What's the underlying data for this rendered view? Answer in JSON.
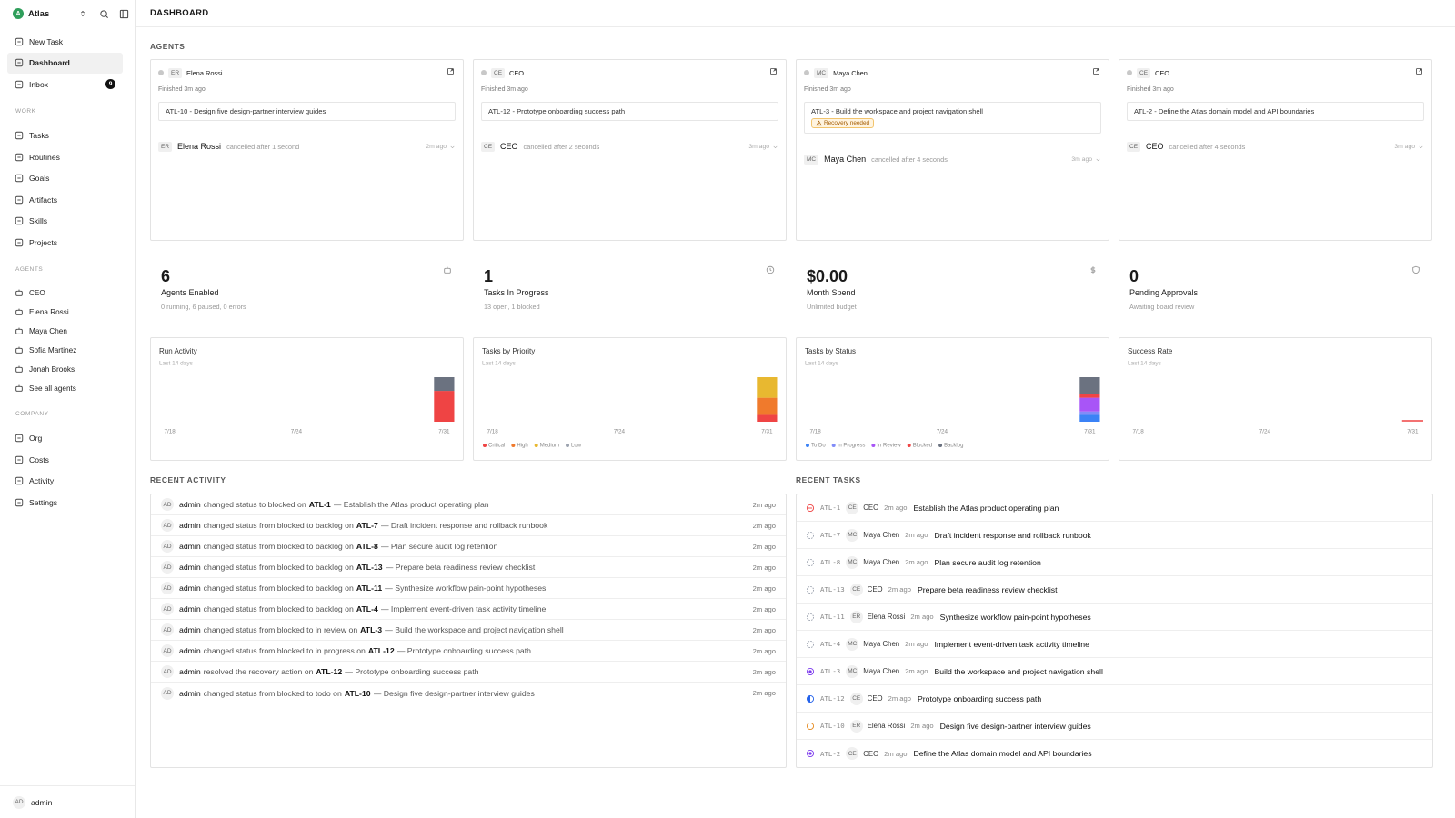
{
  "sidebar": {
    "workspace": {
      "initial": "A",
      "name": "Atlas"
    },
    "nav": [
      {
        "label": "New Task"
      },
      {
        "label": "Dashboard",
        "active": true
      },
      {
        "label": "Inbox",
        "badge": 9
      }
    ],
    "sections": [
      {
        "title": "WORK",
        "items": [
          "Tasks",
          "Routines",
          "Goals",
          "Artifacts",
          "Skills",
          "Projects"
        ]
      },
      {
        "title": "AGENTS",
        "items": [
          "CEO",
          "Elena Rossi",
          "Maya Chen",
          "Sofia Martinez",
          "Jonah Brooks",
          "See all agents"
        ]
      },
      {
        "title": "COMPANY",
        "items": [
          "Org",
          "Costs",
          "Activity",
          "Settings"
        ]
      }
    ],
    "user": {
      "initials": "AD",
      "name": "admin"
    }
  },
  "header": {
    "title": "DASHBOARD"
  },
  "agents": {
    "title": "AGENTS",
    "cards": [
      {
        "initials": "ER",
        "name": "Elena Rossi",
        "status": "Finished 3m ago",
        "task": "ATL-10 - Design five design-partner interview guides",
        "run": {
          "initials": "ER",
          "name": "Elena Rossi",
          "result": "cancelled after 1 second",
          "time": "2m ago"
        }
      },
      {
        "initials": "CE",
        "name": "CEO",
        "status": "Finished 3m ago",
        "task": "ATL-12 - Prototype onboarding success path",
        "run": {
          "initials": "CE",
          "name": "CEO",
          "result": "cancelled after 2 seconds",
          "time": "3m ago"
        }
      },
      {
        "initials": "MC",
        "name": "Maya Chen",
        "status": "Finished 3m ago",
        "task": "ATL-3 - Build the workspace and project navigation shell",
        "badge": "Recovery needed",
        "run": {
          "initials": "MC",
          "name": "Maya Chen",
          "result": "cancelled after 4 seconds",
          "time": "3m ago"
        }
      },
      {
        "initials": "CE",
        "name": "CEO",
        "status": "Finished 3m ago",
        "task": "ATL-2 - Define the Atlas domain model and API boundaries",
        "run": {
          "initials": "CE",
          "name": "CEO",
          "result": "cancelled after 4 seconds",
          "time": "3m ago"
        }
      }
    ]
  },
  "stats": [
    {
      "value": 6,
      "label": "Agents Enabled",
      "sub": "0 running, 6 paused, 0 errors"
    },
    {
      "value": 1,
      "label": "Tasks In Progress",
      "sub": "13 open, 1 blocked"
    },
    {
      "value": "$0.00",
      "label": "Month Spend",
      "sub": "Unlimited budget"
    },
    {
      "value": 0,
      "label": "Pending Approvals",
      "sub": "Awaiting board review"
    }
  ],
  "charts": [
    {
      "type": "bar",
      "title": "Run Activity",
      "subtitle": "Last 14 days",
      "categories": [
        "7/18",
        null,
        null,
        null,
        null,
        null,
        "7/24",
        null,
        null,
        null,
        null,
        null,
        null,
        "7/31"
      ],
      "series": [
        {
          "color": "#ef4444",
          "values": [
            0,
            0,
            0,
            0,
            0,
            0,
            0,
            0,
            0,
            0,
            0,
            0,
            0,
            9
          ]
        },
        {
          "color": "#6b7280",
          "values": [
            0,
            0,
            0,
            0,
            0,
            0,
            0,
            0,
            0,
            0,
            0,
            0,
            0,
            4
          ]
        }
      ]
    },
    {
      "type": "bar",
      "title": "Tasks by Priority",
      "subtitle": "Last 14 days",
      "categories": [
        "7/18",
        null,
        null,
        null,
        null,
        null,
        "7/24",
        null,
        null,
        null,
        null,
        null,
        null,
        "7/31"
      ],
      "series": [
        {
          "name": "Critical",
          "color": "#ef4444",
          "values": [
            0,
            0,
            0,
            0,
            0,
            0,
            0,
            0,
            0,
            0,
            0,
            0,
            0,
            2
          ]
        },
        {
          "name": "High",
          "color": "#f07a2c",
          "values": [
            0,
            0,
            0,
            0,
            0,
            0,
            0,
            0,
            0,
            0,
            0,
            0,
            0,
            5
          ]
        },
        {
          "name": "Medium",
          "color": "#e8b830",
          "values": [
            0,
            0,
            0,
            0,
            0,
            0,
            0,
            0,
            0,
            0,
            0,
            0,
            0,
            6
          ]
        },
        {
          "name": "Low",
          "color": "#9ca3af",
          "values": [
            0,
            0,
            0,
            0,
            0,
            0,
            0,
            0,
            0,
            0,
            0,
            0,
            0,
            0
          ]
        }
      ]
    },
    {
      "type": "bar",
      "title": "Tasks by Status",
      "subtitle": "Last 14 days",
      "categories": [
        "7/18",
        null,
        null,
        null,
        null,
        null,
        "7/24",
        null,
        null,
        null,
        null,
        null,
        null,
        "7/31"
      ],
      "series": [
        {
          "name": "To Do",
          "color": "#3b82f6",
          "values": [
            0,
            0,
            0,
            0,
            0,
            0,
            0,
            0,
            0,
            0,
            0,
            0,
            0,
            2
          ]
        },
        {
          "name": "In Progress",
          "color": "#818cf8",
          "values": [
            0,
            0,
            0,
            0,
            0,
            0,
            0,
            0,
            0,
            0,
            0,
            0,
            0,
            1
          ]
        },
        {
          "name": "In Review",
          "color": "#a855f7",
          "values": [
            0,
            0,
            0,
            0,
            0,
            0,
            0,
            0,
            0,
            0,
            0,
            0,
            0,
            4
          ]
        },
        {
          "name": "Blocked",
          "color": "#ef4444",
          "values": [
            0,
            0,
            0,
            0,
            0,
            0,
            0,
            0,
            0,
            0,
            0,
            0,
            0,
            1
          ]
        },
        {
          "name": "Backlog",
          "color": "#6b7280",
          "values": [
            0,
            0,
            0,
            0,
            0,
            0,
            0,
            0,
            0,
            0,
            0,
            0,
            0,
            5
          ]
        }
      ]
    },
    {
      "type": "rate",
      "title": "Success Rate",
      "subtitle": "Last 14 days",
      "categories": [
        "7/18",
        null,
        null,
        null,
        null,
        null,
        "7/24",
        null,
        null,
        null,
        null,
        null,
        null,
        "7/31"
      ],
      "ylim": [
        0,
        100
      ],
      "series": [
        {
          "color": "#ef4444",
          "values": [
            null,
            null,
            null,
            null,
            null,
            null,
            null,
            null,
            null,
            null,
            null,
            null,
            null,
            0
          ]
        }
      ]
    }
  ],
  "activity": {
    "title": "RECENT ACTIVITY",
    "rows": [
      {
        "avatar": "AD",
        "actor": "admin",
        "action": "changed status to blocked on",
        "ref": "ATL-1",
        "title": "— Establish the Atlas product operating plan",
        "time": "2m ago"
      },
      {
        "avatar": "AD",
        "actor": "admin",
        "action": "changed status from blocked to backlog on",
        "ref": "ATL-7",
        "title": "— Draft incident response and rollback runbook",
        "time": "2m ago"
      },
      {
        "avatar": "AD",
        "actor": "admin",
        "action": "changed status from blocked to backlog on",
        "ref": "ATL-8",
        "title": "— Plan secure audit log retention",
        "time": "2m ago"
      },
      {
        "avatar": "AD",
        "actor": "admin",
        "action": "changed status from blocked to backlog on",
        "ref": "ATL-13",
        "title": "— Prepare beta readiness review checklist",
        "time": "2m ago"
      },
      {
        "avatar": "AD",
        "actor": "admin",
        "action": "changed status from blocked to backlog on",
        "ref": "ATL-11",
        "title": "— Synthesize workflow pain-point hypotheses",
        "time": "2m ago"
      },
      {
        "avatar": "AD",
        "actor": "admin",
        "action": "changed status from blocked to backlog on",
        "ref": "ATL-4",
        "title": "— Implement event-driven task activity timeline",
        "time": "2m ago"
      },
      {
        "avatar": "AD",
        "actor": "admin",
        "action": "changed status from blocked to in review on",
        "ref": "ATL-3",
        "title": "— Build the workspace and project navigation shell",
        "time": "2m ago"
      },
      {
        "avatar": "AD",
        "actor": "admin",
        "action": "changed status from blocked to in progress on",
        "ref": "ATL-12",
        "title": "— Prototype onboarding success path",
        "time": "2m ago"
      },
      {
        "avatar": "AD",
        "actor": "admin",
        "action": "resolved the recovery action on",
        "ref": "ATL-12",
        "title": "— Prototype onboarding success path",
        "time": "2m ago"
      },
      {
        "avatar": "AD",
        "actor": "admin",
        "action": "changed status from blocked to todo on",
        "ref": "ATL-10",
        "title": "— Design five design-partner interview guides",
        "time": "2m ago"
      }
    ]
  },
  "tasks": {
    "title": "RECENT TASKS",
    "rows": [
      {
        "icon": {
          "color": "#ef4444",
          "style": "slash"
        },
        "id": "ATL-1",
        "initials": "CE",
        "assignee": "CEO",
        "time": "2m ago",
        "title": "Establish the Atlas product operating plan"
      },
      {
        "icon": {
          "color": "#9ca3af",
          "style": "dashed"
        },
        "id": "ATL-7",
        "initials": "MC",
        "assignee": "Maya Chen",
        "time": "2m ago",
        "title": "Draft incident response and rollback runbook"
      },
      {
        "icon": {
          "color": "#9ca3af",
          "style": "dashed"
        },
        "id": "ATL-8",
        "initials": "MC",
        "assignee": "Maya Chen",
        "time": "2m ago",
        "title": "Plan secure audit log retention"
      },
      {
        "icon": {
          "color": "#9ca3af",
          "style": "dashed"
        },
        "id": "ATL-13",
        "initials": "CE",
        "assignee": "CEO",
        "time": "2m ago",
        "title": "Prepare beta readiness review checklist"
      },
      {
        "icon": {
          "color": "#9ca3af",
          "style": "dashed"
        },
        "id": "ATL-11",
        "initials": "ER",
        "assignee": "Elena Rossi",
        "time": "2m ago",
        "title": "Synthesize workflow pain-point hypotheses"
      },
      {
        "icon": {
          "color": "#9ca3af",
          "style": "dashed"
        },
        "id": "ATL-4",
        "initials": "MC",
        "assignee": "Maya Chen",
        "time": "2m ago",
        "title": "Implement event-driven task activity timeline"
      },
      {
        "icon": {
          "color": "#7c3aed",
          "style": "dot"
        },
        "id": "ATL-3",
        "initials": "MC",
        "assignee": "Maya Chen",
        "time": "2m ago",
        "title": "Build the workspace and project navigation shell"
      },
      {
        "icon": {
          "color": "#2563eb",
          "style": "half"
        },
        "id": "ATL-12",
        "initials": "CE",
        "assignee": "CEO",
        "time": "2m ago",
        "title": "Prototype onboarding success path"
      },
      {
        "icon": {
          "color": "#e58a1f",
          "style": "ring"
        },
        "id": "ATL-10",
        "initials": "ER",
        "assignee": "Elena Rossi",
        "time": "2m ago",
        "title": "Design five design-partner interview guides"
      },
      {
        "icon": {
          "color": "#7c3aed",
          "style": "dot"
        },
        "id": "ATL-2",
        "initials": "CE",
        "assignee": "CEO",
        "time": "2m ago",
        "title": "Define the Atlas domain model and API boundaries"
      }
    ]
  }
}
